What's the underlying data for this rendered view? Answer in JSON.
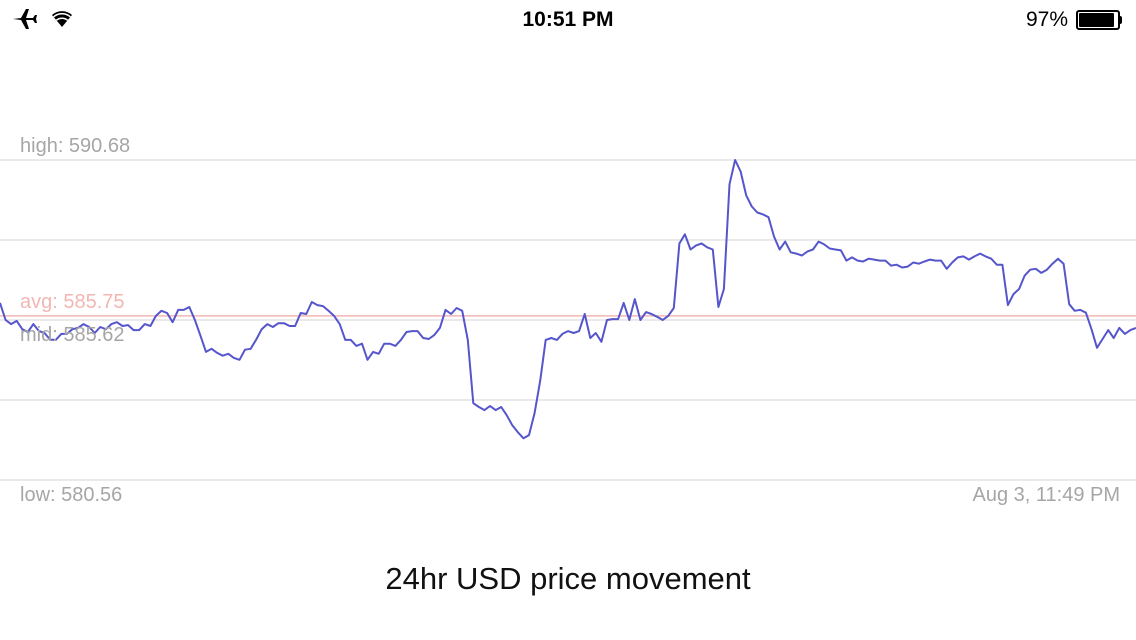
{
  "status_bar": {
    "time": "10:51 PM",
    "battery_percent": "97%",
    "battery_level": 0.97,
    "icons": [
      "airplane-icon",
      "wifi-icon",
      "battery-icon"
    ]
  },
  "chart": {
    "high_label": "high: 590.68",
    "avg_label": "avg: 585.75",
    "mid_label": "mid: 585.62",
    "low_label": "low: 580.56",
    "date_label": "Aug 3, 11:49 PM",
    "caption": "24hr USD price movement"
  },
  "colors": {
    "line": "#5555cc",
    "avg_line": "#f2b7b3",
    "grid": "#e3e3e3",
    "label": "#a6a6a6"
  },
  "chart_data": {
    "type": "line",
    "ylim": [
      580.56,
      590.68
    ],
    "high": 590.68,
    "avg": 585.75,
    "mid": 585.62,
    "low": 580.56,
    "y": [
      586.16,
      585.62,
      585.49,
      585.59,
      585.33,
      585.24,
      585.49,
      585.27,
      585.21,
      585.0,
      584.99,
      585.18,
      585.18,
      585.33,
      585.37,
      585.49,
      585.4,
      585.21,
      585.4,
      585.33,
      585.49,
      585.55,
      585.43,
      585.46,
      585.3,
      585.3,
      585.49,
      585.43,
      585.75,
      585.91,
      585.84,
      585.55,
      585.94,
      585.94,
      586.03,
      585.62,
      585.12,
      584.61,
      584.71,
      584.58,
      584.49,
      584.55,
      584.42,
      584.36,
      584.68,
      584.71,
      585.0,
      585.33,
      585.49,
      585.4,
      585.52,
      585.52,
      585.43,
      585.43,
      585.84,
      585.81,
      586.19,
      586.09,
      586.06,
      585.91,
      585.75,
      585.49,
      584.99,
      584.99,
      584.8,
      584.87,
      584.36,
      584.61,
      584.55,
      584.87,
      584.87,
      584.8,
      584.99,
      585.24,
      585.27,
      585.27,
      585.05,
      585.02,
      585.15,
      585.37,
      585.94,
      585.81,
      586.0,
      585.91,
      584.99,
      582.99,
      582.87,
      582.77,
      582.9,
      582.77,
      582.87,
      582.61,
      582.29,
      582.07,
      581.88,
      581.98,
      582.68,
      583.7,
      584.99,
      585.05,
      584.99,
      585.18,
      585.27,
      585.21,
      585.27,
      585.81,
      585.05,
      585.21,
      584.93,
      585.62,
      585.65,
      585.65,
      586.16,
      585.62,
      586.28,
      585.62,
      585.87,
      585.81,
      585.72,
      585.62,
      585.75,
      586.0,
      588.04,
      588.33,
      587.85,
      587.98,
      588.04,
      587.92,
      587.85,
      586.03,
      586.6,
      589.91,
      590.68,
      590.32,
      589.56,
      589.21,
      589.02,
      588.96,
      588.87,
      588.26,
      587.85,
      588.1,
      587.76,
      587.72,
      587.66,
      587.79,
      587.85,
      588.1,
      588.01,
      587.88,
      587.85,
      587.82,
      587.5,
      587.6,
      587.5,
      587.47,
      587.56,
      587.53,
      587.5,
      587.5,
      587.34,
      587.37,
      587.28,
      587.31,
      587.44,
      587.4,
      587.47,
      587.53,
      587.5,
      587.5,
      587.24,
      587.44,
      587.6,
      587.63,
      587.53,
      587.63,
      587.72,
      587.63,
      587.56,
      587.37,
      587.37,
      586.09,
      586.44,
      586.6,
      587.02,
      587.21,
      587.24,
      587.11,
      587.21,
      587.4,
      587.56,
      587.4,
      586.12,
      585.91,
      585.94,
      585.85,
      585.33,
      584.74,
      585.02,
      585.3,
      585.05,
      585.37,
      585.18,
      585.3,
      585.37
    ]
  }
}
